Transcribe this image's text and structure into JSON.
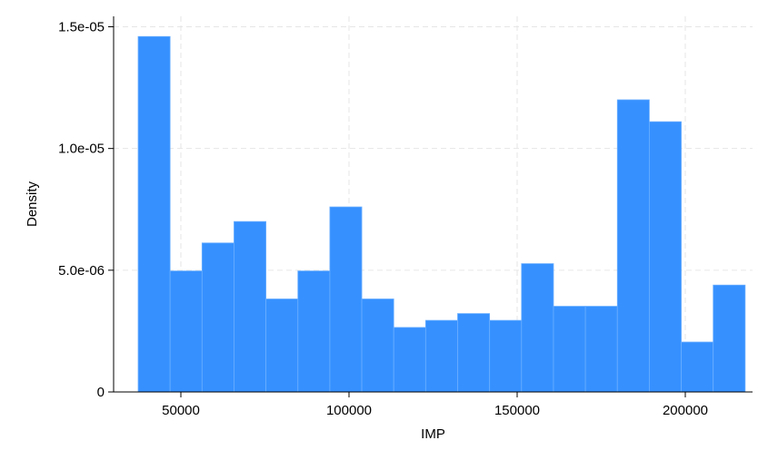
{
  "chart_data": {
    "type": "bar",
    "xlabel": "IMP",
    "ylabel": "Density",
    "bin_edges": [
      37300,
      46800,
      56300,
      65800,
      75300,
      84800,
      94300,
      103800,
      113300,
      122800,
      132300,
      141800,
      151300,
      160800,
      170300,
      179800,
      189300,
      198800,
      208300,
      217800
    ],
    "values": [
      1.46e-05,
      4.97e-06,
      6.12e-06,
      7e-06,
      3.82e-06,
      4.97e-06,
      7.6e-06,
      3.82e-06,
      2.65e-06,
      2.94e-06,
      3.22e-06,
      2.94e-06,
      5.27e-06,
      3.52e-06,
      3.52e-06,
      1.2e-05,
      1.11e-05,
      2.05e-06,
      4.39e-06
    ],
    "xlim": [
      30000,
      220000
    ],
    "ylim": [
      0,
      1.5e-05
    ],
    "xticks": [
      50000,
      100000,
      150000,
      200000
    ],
    "xtick_labels": [
      "50000",
      "100000",
      "150000",
      "200000"
    ],
    "yticks": [
      0,
      5e-06,
      1e-05,
      1.5e-05
    ],
    "ytick_labels": [
      "0",
      "5.0e-06",
      "1.0e-05",
      "1.5e-05"
    ],
    "grid": true,
    "bar_color": "#3691ff",
    "bar_edge_color": "#6aaeff"
  }
}
